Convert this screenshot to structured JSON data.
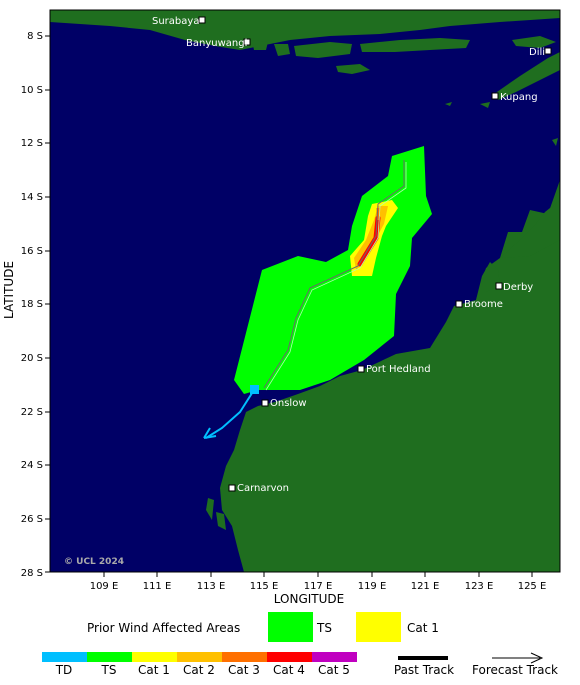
{
  "axes": {
    "x_title": "LONGITUDE",
    "y_title": "LATITUDE",
    "x_ticks": [
      "109 E",
      "111 E",
      "113 E",
      "115 E",
      "117 E",
      "119 E",
      "121 E",
      "123 E",
      "125 E"
    ],
    "y_ticks": [
      "8 S",
      "10 S",
      "12 S",
      "14 S",
      "16 S",
      "18 S",
      "20 S",
      "22 S",
      "24 S",
      "26 S",
      "28 S"
    ]
  },
  "places": [
    {
      "name": "Surabaya"
    },
    {
      "name": "Banyuwangi"
    },
    {
      "name": "Dili"
    },
    {
      "name": "Kupang"
    },
    {
      "name": "Derby"
    },
    {
      "name": "Broome"
    },
    {
      "name": "Port Hedland"
    },
    {
      "name": "Onslow"
    },
    {
      "name": "Carnarvon"
    }
  ],
  "credit": "© UCL 2024",
  "legend": {
    "prior_title": "Prior Wind Affected Areas",
    "prior_items": [
      "TS",
      "Cat 1"
    ],
    "scale": [
      "TD",
      "TS",
      "Cat 1",
      "Cat 2",
      "Cat 3",
      "Cat 4",
      "Cat 5"
    ],
    "past_track": "Past Track",
    "forecast_track": "Forecast Track"
  },
  "colors": {
    "ocean": "#000066",
    "land": "#1f6e1f",
    "TD": "#00bfff",
    "TS": "#00ff00",
    "Cat 1": "#ffff00",
    "Cat 2": "#ffc000",
    "Cat 3": "#ff7000",
    "Cat 4": "#ff0000",
    "Cat 5": "#c000c0"
  }
}
